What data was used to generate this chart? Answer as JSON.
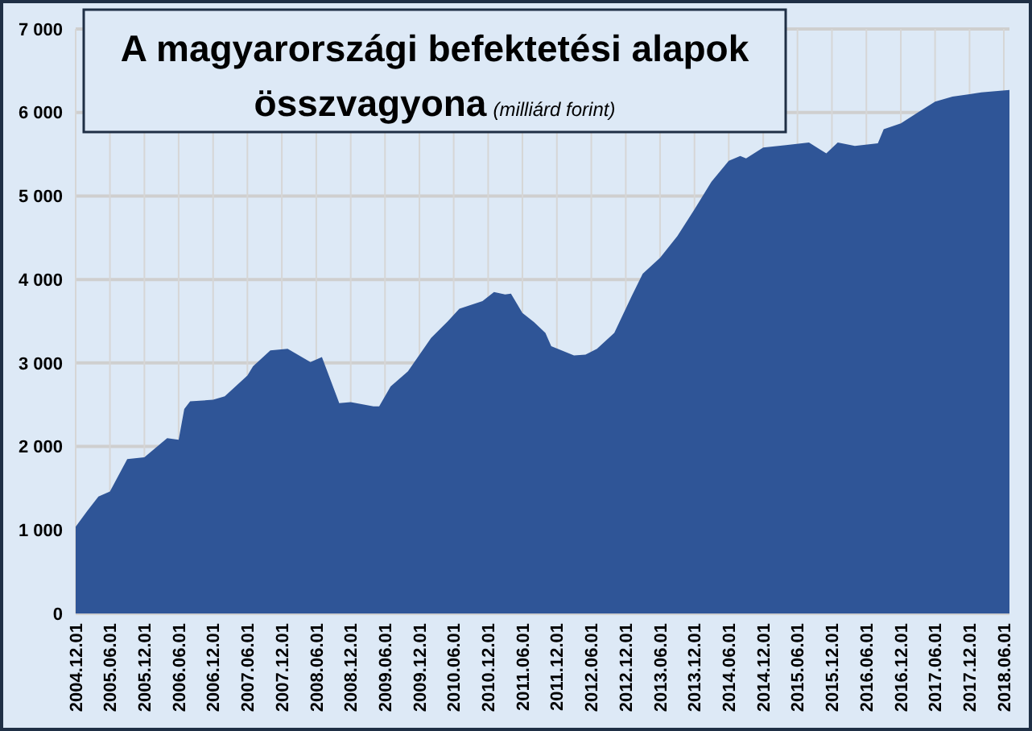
{
  "chart_data": {
    "type": "area",
    "title": "A magyarországi befektetési alapok összvagyona",
    "subtitle": "(milliárd forint)",
    "x": [
      "2004-12",
      "2005-02",
      "2005-04",
      "2005-06",
      "2005-09",
      "2005-12",
      "2006-04",
      "2006-06",
      "2006-07",
      "2006-08",
      "2006-12",
      "2007-02",
      "2007-06",
      "2007-07",
      "2007-10",
      "2008-01",
      "2008-05",
      "2008-07",
      "2008-10",
      "2008-12",
      "2009-04",
      "2009-05",
      "2009-07",
      "2009-10",
      "2010-02",
      "2010-05",
      "2010-07",
      "2010-11",
      "2011-01",
      "2011-03",
      "2011-04",
      "2011-06",
      "2011-08",
      "2011-10",
      "2011-11",
      "2012-03",
      "2012-05",
      "2012-07",
      "2012-10",
      "2013-01",
      "2013-03",
      "2013-06",
      "2013-09",
      "2013-12",
      "2014-03",
      "2014-06",
      "2014-08",
      "2014-09",
      "2014-12",
      "2015-04",
      "2015-08",
      "2015-11",
      "2016-01",
      "2016-04",
      "2016-08",
      "2016-09",
      "2016-12",
      "2017-03",
      "2017-06",
      "2017-09",
      "2017-12",
      "2018-02",
      "2018-07"
    ],
    "series": [
      {
        "color": "#2f5597",
        "values": [
          1040,
          1230,
          1400,
          1460,
          1850,
          1870,
          2100,
          2080,
          2450,
          2540,
          2560,
          2600,
          2850,
          2960,
          3150,
          3170,
          3010,
          3070,
          2520,
          2530,
          2480,
          2480,
          2720,
          2900,
          3300,
          3500,
          3650,
          3740,
          3850,
          3820,
          3830,
          3600,
          3490,
          3360,
          3200,
          3090,
          3100,
          3170,
          3360,
          3800,
          4070,
          4260,
          4520,
          4840,
          5170,
          5420,
          5480,
          5450,
          5580,
          5610,
          5640,
          5510,
          5640,
          5600,
          5630,
          5800,
          5870,
          6000,
          6130,
          6190,
          6220,
          6240,
          6270
        ]
      }
    ],
    "xlim": [
      "2004-12-01",
      "2018-07-01"
    ],
    "xticks": [
      {
        "value": "2004-12-01",
        "label": "2004.12.01"
      },
      {
        "value": "2005-06-01",
        "label": "2005.06.01"
      },
      {
        "value": "2005-12-01",
        "label": "2005.12.01"
      },
      {
        "value": "2006-06-01",
        "label": "2006.06.01"
      },
      {
        "value": "2006-12-01",
        "label": "2006.12.01"
      },
      {
        "value": "2007-06-01",
        "label": "2007.06.01"
      },
      {
        "value": "2007-12-01",
        "label": "2007.12.01"
      },
      {
        "value": "2008-06-01",
        "label": "2008.06.01"
      },
      {
        "value": "2008-12-01",
        "label": "2008.12.01"
      },
      {
        "value": "2009-06-01",
        "label": "2009.06.01"
      },
      {
        "value": "2009-12-01",
        "label": "2009.12.01"
      },
      {
        "value": "2010-06-01",
        "label": "2010.06.01"
      },
      {
        "value": "2010-12-01",
        "label": "2010.12.01"
      },
      {
        "value": "2011-06-01",
        "label": "2011.06.01"
      },
      {
        "value": "2011-12-01",
        "label": "2011.12.01"
      },
      {
        "value": "2012-06-01",
        "label": "2012.06.01"
      },
      {
        "value": "2012-12-01",
        "label": "2012.12.01"
      },
      {
        "value": "2013-06-01",
        "label": "2013.06.01"
      },
      {
        "value": "2013-12-01",
        "label": "2013.12.01"
      },
      {
        "value": "2014-06-01",
        "label": "2014.06.01"
      },
      {
        "value": "2014-12-01",
        "label": "2014.12.01"
      },
      {
        "value": "2015-06-01",
        "label": "2015.06.01"
      },
      {
        "value": "2015-12-01",
        "label": "2015.12.01"
      },
      {
        "value": "2016-06-01",
        "label": "2016.06.01"
      },
      {
        "value": "2016-12-01",
        "label": "2016.12.01"
      },
      {
        "value": "2017-06-01",
        "label": "2017.06.01"
      },
      {
        "value": "2017-12-01",
        "label": "2017.12.01"
      },
      {
        "value": "2018-06-01",
        "label": "2018.06.01"
      }
    ],
    "ylim": [
      0,
      7000
    ],
    "yticks": [
      0,
      {
        "value": 1000,
        "label": "1 000"
      },
      {
        "value": 2000,
        "label": "2 000"
      },
      {
        "value": 3000,
        "label": "3 000"
      },
      {
        "value": 4000,
        "label": "4 000"
      },
      {
        "value": 5000,
        "label": "5 000"
      },
      {
        "value": 6000,
        "label": "6 000"
      },
      {
        "value": 7000,
        "label": "7 000"
      }
    ],
    "grid": true
  }
}
